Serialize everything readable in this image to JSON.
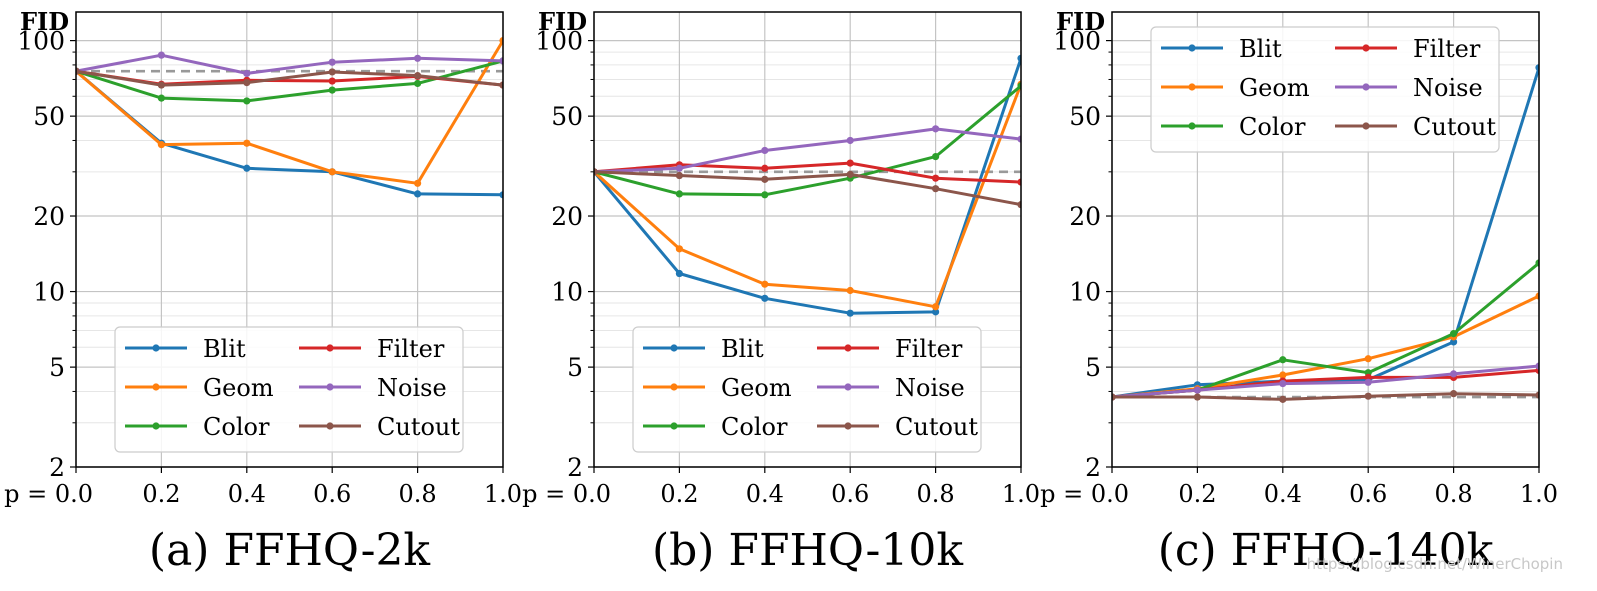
{
  "figure": {
    "watermark": "https://blog.csdn.net/WinerChopin"
  },
  "colors": {
    "Blit": "#1f77b4",
    "Geom": "#ff7f0e",
    "Color": "#2ca02c",
    "Filter": "#d62728",
    "Noise": "#9467bd",
    "Cutout": "#8c564b",
    "baseline": "#999999"
  },
  "chart_data": [
    {
      "type": "line",
      "title": "(a) FFHQ-2k",
      "ylabel": "FID",
      "xlabel": "",
      "x": [
        0.0,
        0.2,
        0.4,
        0.6,
        0.8,
        1.0
      ],
      "x_tick_labels": [
        "p = 0.0",
        "0.2",
        "0.4",
        "0.6",
        "0.8",
        "1.0"
      ],
      "y_scale": "log",
      "ylim": [
        2,
        130
      ],
      "y_ticks": [
        2,
        5,
        10,
        20,
        50,
        100
      ],
      "grid": true,
      "legend": "lower-center",
      "legend_columns": [
        [
          "Blit",
          "Geom",
          "Color"
        ],
        [
          "Filter",
          "Noise",
          "Cutout"
        ]
      ],
      "baseline": 75.5,
      "series": [
        {
          "name": "Blit",
          "values": [
            75.5,
            39,
            31,
            30,
            24.5,
            24.3
          ]
        },
        {
          "name": "Geom",
          "values": [
            75.5,
            38.5,
            39,
            30,
            27,
            100
          ]
        },
        {
          "name": "Color",
          "values": [
            75.5,
            59,
            57.5,
            63.5,
            67.5,
            83
          ]
        },
        {
          "name": "Filter",
          "values": [
            75.5,
            67,
            69.5,
            69,
            72,
            66.5
          ]
        },
        {
          "name": "Noise",
          "values": [
            75.5,
            87.5,
            74,
            82,
            85,
            83
          ]
        },
        {
          "name": "Cutout",
          "values": [
            75.5,
            66.5,
            68,
            75,
            72.5,
            66.5
          ]
        }
      ]
    },
    {
      "type": "line",
      "title": "(b) FFHQ-10k",
      "ylabel": "FID",
      "xlabel": "",
      "x": [
        0.0,
        0.2,
        0.4,
        0.6,
        0.8,
        1.0
      ],
      "x_tick_labels": [
        "p = 0.0",
        "0.2",
        "0.4",
        "0.6",
        "0.8",
        "1.0"
      ],
      "y_scale": "log",
      "ylim": [
        2,
        130
      ],
      "y_ticks": [
        2,
        5,
        10,
        20,
        50,
        100
      ],
      "grid": true,
      "legend": "lower-center",
      "legend_columns": [
        [
          "Blit",
          "Geom",
          "Color"
        ],
        [
          "Filter",
          "Noise",
          "Cutout"
        ]
      ],
      "baseline": 30,
      "series": [
        {
          "name": "Blit",
          "values": [
            30,
            11.8,
            9.4,
            8.2,
            8.3,
            85
          ]
        },
        {
          "name": "Geom",
          "values": [
            30,
            14.8,
            10.7,
            10.1,
            8.7,
            67
          ]
        },
        {
          "name": "Color",
          "values": [
            30,
            24.5,
            24.3,
            28.3,
            34.5,
            66
          ]
        },
        {
          "name": "Filter",
          "values": [
            30,
            32,
            31,
            32.5,
            28.3,
            27.3
          ]
        },
        {
          "name": "Noise",
          "values": [
            30,
            31,
            36.5,
            40,
            44.5,
            40.5
          ]
        },
        {
          "name": "Cutout",
          "values": [
            30,
            29,
            28,
            29.3,
            25.7,
            22.2
          ]
        }
      ]
    },
    {
      "type": "line",
      "title": "(c) FFHQ-140k",
      "ylabel": "FID",
      "xlabel": "",
      "x": [
        0.0,
        0.2,
        0.4,
        0.6,
        0.8,
        1.0
      ],
      "x_tick_labels": [
        "p = 0.0",
        "0.2",
        "0.4",
        "0.6",
        "0.8",
        "1.0"
      ],
      "y_scale": "log",
      "ylim": [
        2,
        130
      ],
      "y_ticks": [
        2,
        5,
        10,
        20,
        50,
        100
      ],
      "grid": true,
      "legend": "upper-center",
      "legend_columns": [
        [
          "Blit",
          "Geom",
          "Color"
        ],
        [
          "Filter",
          "Noise",
          "Cutout"
        ]
      ],
      "baseline": 3.8,
      "series": [
        {
          "name": "Blit",
          "values": [
            3.8,
            4.25,
            4.4,
            4.45,
            6.3,
            78
          ]
        },
        {
          "name": "Geom",
          "values": [
            3.8,
            4.1,
            4.65,
            5.4,
            6.6,
            9.6
          ]
        },
        {
          "name": "Color",
          "values": [
            3.8,
            4.05,
            5.35,
            4.75,
            6.8,
            13
          ]
        },
        {
          "name": "Filter",
          "values": [
            3.8,
            4.05,
            4.4,
            4.55,
            4.55,
            4.85
          ]
        },
        {
          "name": "Noise",
          "values": [
            3.8,
            4.05,
            4.3,
            4.35,
            4.7,
            5.05
          ]
        },
        {
          "name": "Cutout",
          "values": [
            3.8,
            3.8,
            3.72,
            3.83,
            3.92,
            3.87
          ]
        }
      ]
    }
  ]
}
